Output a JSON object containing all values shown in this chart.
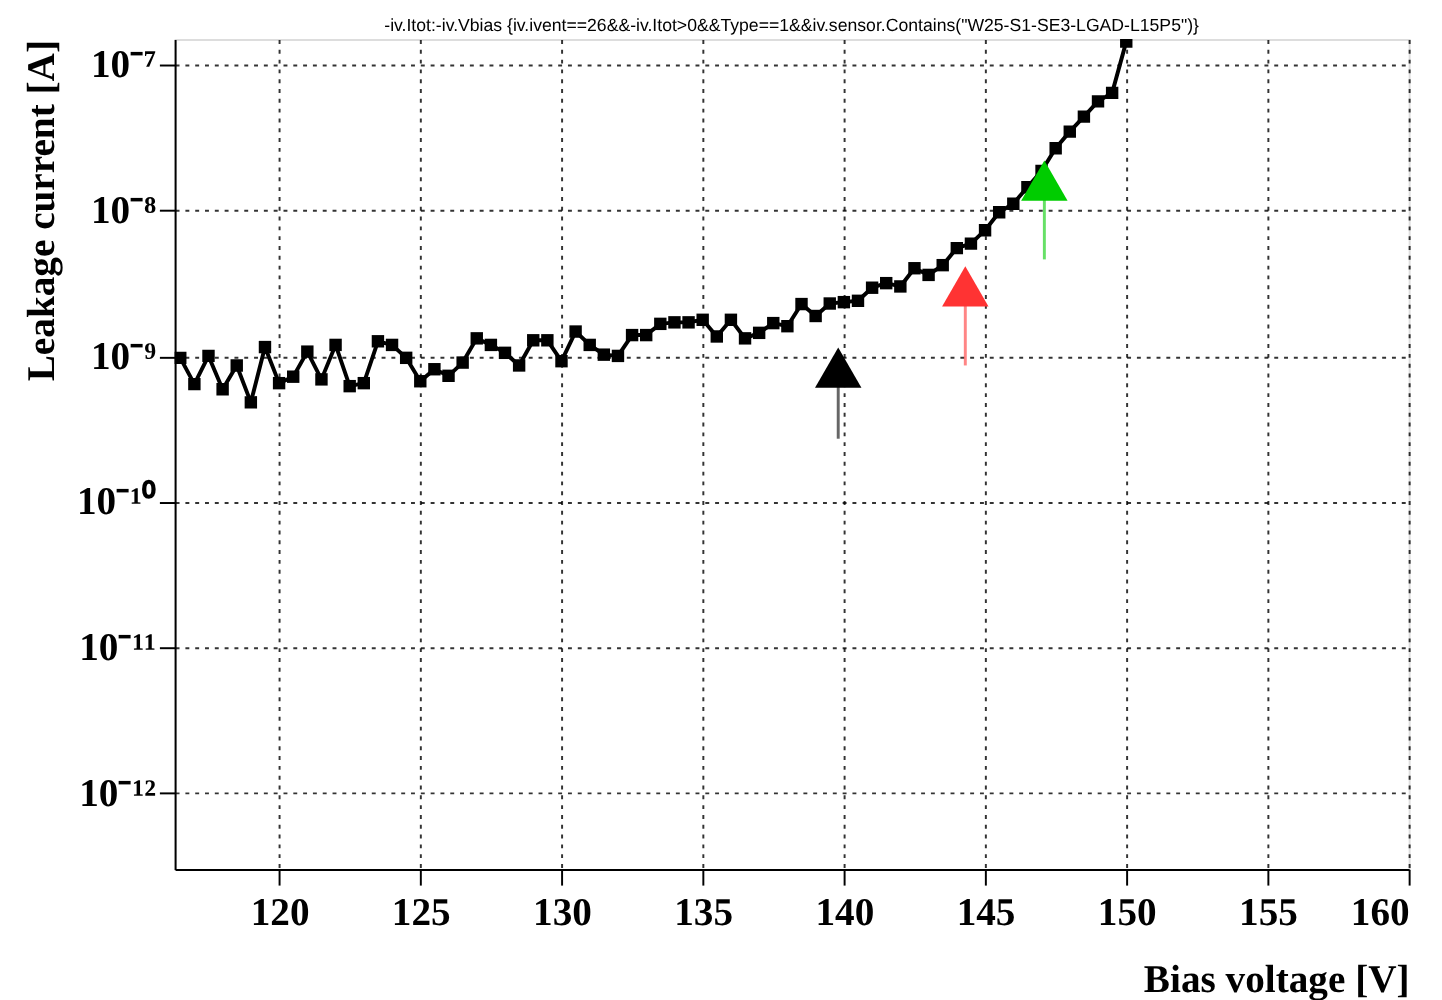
{
  "chart_data": {
    "type": "line",
    "title": "-iv.Itot:-iv.Vbias {iv.ivent==26&&-iv.Itot>0&&Type==1&&iv.sensor.Contains(\"W25-S1-SE3-LGAD-L15P5\")}",
    "xlabel": "Bias voltage [V]",
    "ylabel": "Leakage current [A]",
    "x": [
      116.5,
      117,
      117.5,
      118,
      118.5,
      119,
      119.5,
      120,
      120.5,
      121,
      121.5,
      122,
      122.5,
      123,
      123.5,
      124,
      124.5,
      125,
      125.5,
      126,
      126.5,
      127,
      127.5,
      128,
      128.5,
      129,
      129.5,
      130,
      130.5,
      131,
      131.5,
      132,
      132.5,
      133,
      133.5,
      134,
      134.5,
      135,
      135.5,
      136,
      136.5,
      137,
      137.5,
      138,
      138.5,
      139,
      139.5,
      140,
      140.5,
      141,
      141.5,
      142,
      142.5,
      143,
      143.5,
      144,
      144.5,
      145,
      145.5,
      146,
      146.5,
      147,
      147.5,
      148,
      148.5,
      149,
      149.5,
      150
    ],
    "series": [
      {
        "color": "#000000",
        "values": [
          9.7e-10,
          6.4e-10,
          1e-09,
          5.9e-10,
          8.6e-10,
          4.8e-10,
          1.15e-09,
          6.5e-10,
          7.2e-10,
          1.07e-09,
          6.9e-10,
          1.19e-09,
          6.2e-10,
          6.5e-10,
          1.26e-09,
          1.19e-09,
          9.7e-10,
          6.7e-10,
          8.1e-10,
          7.3e-10,
          9e-10,
          1.32e-09,
          1.19e-09,
          1.05e-09,
          8.6e-10,
          1.28e-09,
          1.28e-09,
          9.2e-10,
          1.47e-09,
          1.19e-09,
          1.02e-09,
          1e-09,
          1.39e-09,
          1.39e-09,
          1.66e-09,
          1.7e-09,
          1.7e-09,
          1.77e-09,
          1.36e-09,
          1.77e-09,
          1.32e-09,
          1.44e-09,
          1.68e-09,
          1.6e-09,
          2.27e-09,
          1.88e-09,
          2.29e-09,
          2.34e-09,
          2.39e-09,
          2.94e-09,
          3.16e-09,
          3e-09,
          4e-09,
          3.6e-09,
          4.2e-09,
          5.5e-09,
          5.9e-09,
          7.3e-09,
          9.7e-09,
          1.11e-08,
          1.44e-08,
          1.86e-08,
          2.67e-08,
          3.47e-08,
          4.4e-08,
          5.6e-08,
          6.4e-08,
          1.44e-07
        ]
      },
      {
        "type": "scatter",
        "marker": "triangle",
        "x": [
          139.8,
          144.3,
          147.1
        ],
        "colors": [
          "#000000",
          "#ff3333",
          "#00cc00"
        ],
        "values": [
          8.3e-10,
          3e-09,
          1.6e-08
        ],
        "errors": [
          [
            2.7e-10,
            8.3e-10
          ],
          [
            8.6e-10,
            3e-09
          ],
          [
            4.6e-09,
            1.6e-08
          ]
        ]
      }
    ],
    "xlim": [
      116.3,
      160
    ],
    "xticks": [
      120,
      125,
      130,
      135,
      140,
      145,
      150,
      155,
      160
    ],
    "ylim": [
      3e-13,
      1.5e-07
    ],
    "yticks": [
      {
        "value": 1e-12,
        "label": "10⁻¹²"
      },
      {
        "value": 1e-11,
        "label": "10⁻¹¹"
      },
      {
        "value": 1e-10,
        "label": "10⁻¹⁰"
      },
      {
        "value": 1e-09,
        "label": "10⁻⁹"
      },
      {
        "value": 1e-08,
        "label": "10⁻⁸"
      },
      {
        "value": 1e-07,
        "label": "10⁻⁷"
      }
    ],
    "log": "y",
    "grid": true,
    "marker": "square",
    "line_style": "solid"
  }
}
